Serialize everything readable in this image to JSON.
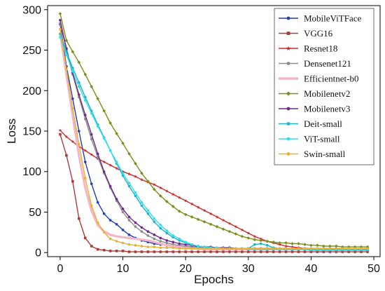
{
  "chart_data": {
    "type": "line",
    "title": "",
    "xlabel": "Epochs",
    "ylabel": "Loss",
    "xlim": [
      -2,
      51
    ],
    "ylim": [
      -5,
      305
    ],
    "xticks": [
      0,
      10,
      20,
      30,
      40,
      50
    ],
    "yticks": [
      0,
      50,
      100,
      150,
      200,
      250,
      300
    ],
    "grid": false,
    "legend_position": "top-right",
    "x": [
      0,
      1,
      2,
      3,
      4,
      5,
      6,
      7,
      8,
      9,
      10,
      11,
      12,
      13,
      14,
      15,
      16,
      17,
      18,
      19,
      20,
      21,
      22,
      23,
      24,
      25,
      26,
      27,
      28,
      29,
      30,
      31,
      32,
      33,
      34,
      35,
      36,
      37,
      38,
      39,
      40,
      41,
      42,
      43,
      44,
      45,
      46,
      47,
      48,
      49
    ],
    "series": [
      {
        "name": "MobileViTFace",
        "color": "#1f3fb5",
        "marker": "circle",
        "values": [
          282,
          230,
          190,
          150,
          112,
          85,
          62,
          48,
          40,
          35,
          28,
          22,
          18,
          15,
          13,
          11,
          10,
          9,
          8,
          8,
          7,
          7,
          7,
          6,
          6,
          6,
          6,
          6,
          5,
          5,
          5,
          5,
          5,
          5,
          5,
          5,
          4,
          4,
          4,
          4,
          4,
          4,
          4,
          4,
          4,
          4,
          4,
          4,
          4,
          4
        ]
      },
      {
        "name": "VGG16",
        "color": "#b03a3a",
        "marker": "square",
        "values": [
          146,
          120,
          88,
          42,
          18,
          8,
          4,
          3,
          2,
          2,
          2,
          1,
          1,
          1,
          1,
          1,
          1,
          1,
          1,
          1,
          1,
          1,
          1,
          1,
          1,
          1,
          1,
          1,
          1,
          1,
          1,
          1,
          1,
          1,
          1,
          1,
          1,
          1,
          1,
          1,
          1,
          1,
          1,
          1,
          1,
          1,
          1,
          1,
          1,
          1
        ]
      },
      {
        "name": "Resnet18",
        "color": "#cc2b2b",
        "marker": "star",
        "values": [
          151,
          143,
          137,
          131,
          126,
          121,
          116,
          112,
          108,
          104,
          100,
          97,
          94,
          90,
          87,
          84,
          80,
          76,
          72,
          68,
          64,
          60,
          56,
          52,
          48,
          44,
          40,
          36,
          32,
          28,
          24,
          20,
          17,
          14,
          12,
          10,
          8,
          7,
          6,
          5,
          5,
          4,
          4,
          4,
          3,
          3,
          3,
          3,
          3,
          3
        ]
      },
      {
        "name": "Densenet121",
        "color": "#8c8c8c",
        "marker": "circle",
        "values": [
          283,
          250,
          220,
          192,
          165,
          140,
          118,
          98,
          80,
          64,
          50,
          40,
          32,
          26,
          21,
          17,
          14,
          12,
          10,
          9,
          8,
          7,
          6,
          6,
          5,
          5,
          4,
          4,
          4,
          4,
          4,
          4,
          4,
          4,
          4,
          4,
          4,
          4,
          4,
          4,
          4,
          4,
          4,
          4,
          4,
          4,
          4,
          4,
          4,
          4
        ]
      },
      {
        "name": "Efficientnet-b0",
        "color": "#f2b6c6",
        "marker": "none",
        "values": [
          272,
          220,
          170,
          120,
          80,
          52,
          34,
          26,
          22,
          20,
          19,
          18,
          17,
          16,
          15,
          13,
          11,
          9,
          8,
          7,
          6,
          5,
          5,
          4,
          4,
          4,
          4,
          4,
          4,
          4,
          4,
          4,
          4,
          4,
          4,
          4,
          4,
          4,
          4,
          4,
          4,
          4,
          4,
          4,
          4,
          4,
          4,
          4,
          4,
          4
        ]
      },
      {
        "name": "Mobilenetv2",
        "color": "#7f8c1c",
        "marker": "diamond",
        "values": [
          295,
          262,
          248,
          235,
          220,
          205,
          190,
          175,
          160,
          147,
          135,
          122,
          110,
          98,
          88,
          78,
          70,
          63,
          57,
          51,
          47,
          44,
          41,
          38,
          35,
          32,
          29,
          26,
          23,
          20,
          18,
          16,
          15,
          14,
          13,
          12,
          12,
          11,
          11,
          10,
          9,
          9,
          8,
          8,
          8,
          7,
          7,
          7,
          7,
          7
        ]
      },
      {
        "name": "Mobilenetv3",
        "color": "#6a2a8c",
        "marker": "circle",
        "values": [
          287,
          252,
          222,
          195,
          170,
          146,
          122,
          100,
          82,
          66,
          54,
          44,
          37,
          31,
          26,
          22,
          18,
          15,
          13,
          11,
          10,
          9,
          8,
          7,
          7,
          6,
          6,
          6,
          5,
          5,
          5,
          5,
          5,
          5,
          5,
          5,
          5,
          5,
          5,
          5,
          5,
          5,
          5,
          5,
          5,
          5,
          5,
          5,
          5,
          5
        ]
      },
      {
        "name": "Deit-small",
        "color": "#1fb3c9",
        "marker": "circle",
        "values": [
          270,
          248,
          228,
          210,
          192,
          175,
          158,
          142,
          126,
          110,
          95,
          82,
          70,
          58,
          48,
          38,
          30,
          24,
          19,
          15,
          12,
          10,
          8,
          7,
          6,
          5,
          5,
          5,
          5,
          5,
          5,
          10,
          11,
          9,
          6,
          5,
          4,
          4,
          4,
          4,
          3,
          3,
          3,
          3,
          3,
          3,
          3,
          3,
          3,
          3
        ]
      },
      {
        "name": "ViT-small",
        "color": "#2ee0ec",
        "marker": "circle",
        "values": [
          266,
          244,
          224,
          205,
          188,
          172,
          156,
          141,
          126,
          112,
          98,
          86,
          74,
          62,
          52,
          42,
          34,
          27,
          21,
          17,
          13,
          10,
          8,
          7,
          6,
          6,
          5,
          5,
          5,
          5,
          4,
          4,
          4,
          4,
          4,
          4,
          4,
          4,
          4,
          4,
          4,
          4,
          4,
          4,
          4,
          4,
          4,
          4,
          4,
          4
        ]
      },
      {
        "name": "Swin-small",
        "color": "#e8b131",
        "marker": "circle",
        "values": [
          276,
          226,
          178,
          134,
          92,
          58,
          37,
          25,
          17,
          14,
          12,
          10,
          9,
          8,
          7,
          7,
          6,
          6,
          6,
          5,
          5,
          5,
          5,
          5,
          5,
          5,
          5,
          5,
          5,
          5,
          5,
          5,
          5,
          5,
          5,
          5,
          5,
          5,
          5,
          5,
          5,
          5,
          5,
          5,
          5,
          5,
          5,
          5,
          5,
          5
        ]
      }
    ]
  }
}
